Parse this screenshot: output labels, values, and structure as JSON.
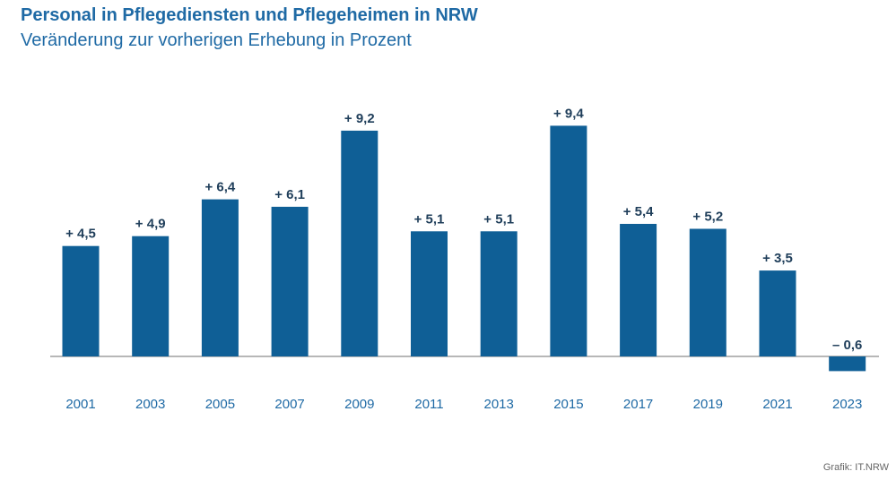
{
  "header": {
    "title": "Personal in Pflegediensten und Pflegeheimen in NRW",
    "subtitle": "Veränderung zur vorherigen Erhebung in Prozent"
  },
  "footer": {
    "source": "Grafik: IT.NRW"
  },
  "colors": {
    "bar": "#0f5f96",
    "title": "#1f6aa5",
    "baseline": "#6f6f6f"
  },
  "chart_data": {
    "type": "bar",
    "title": "Personal in Pflegediensten und Pflegeheimen in NRW",
    "subtitle": "Veränderung zur vorherigen Erhebung in Prozent",
    "categories": [
      "2001",
      "2003",
      "2005",
      "2007",
      "2009",
      "2011",
      "2013",
      "2015",
      "2017",
      "2019",
      "2021",
      "2023"
    ],
    "values": [
      4.5,
      4.9,
      6.4,
      6.1,
      9.2,
      5.1,
      5.1,
      9.4,
      5.4,
      5.2,
      3.5,
      -0.6
    ],
    "value_labels": [
      "+ 4,5",
      "+ 4,9",
      "+ 6,4",
      "+ 6,1",
      "+ 9,2",
      "+ 5,1",
      "+ 5,1",
      "+ 9,4",
      "+ 5,4",
      "+ 5,2",
      "+ 3,5",
      "– 0,6"
    ],
    "xlabel": "",
    "ylabel": "",
    "grid": false,
    "legend": "none"
  }
}
